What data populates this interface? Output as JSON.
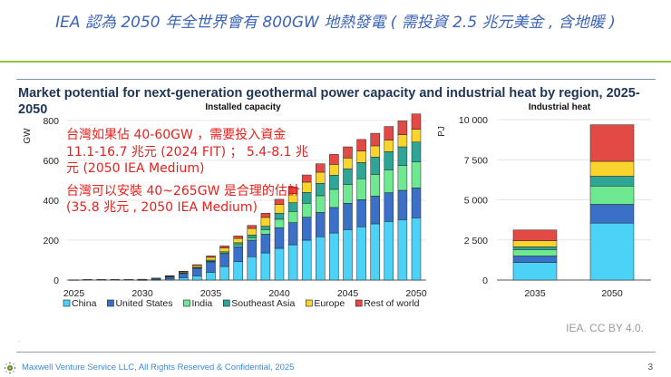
{
  "slide_title": "IEA 認為 2050 年全世界會有 800GW 地熱發電 ( 需投資 2.5 兆元美金 , 含地暖 )",
  "chart_title": "Market potential for next-generation geothermal power capacity and industrial heat by region, 2025-2050",
  "annotation": {
    "line1": "台灣如果佔 40-60GW ，需要投入資金 11.1-16.7 兆元 (2024 FIT) ； 5.4-8.1 兆元 (2050 IEA Medium)",
    "line2": "台灣可以安裝 40~265GW 是合理的估計 (35.8 兆元 , 2050 IEA Medium)"
  },
  "source": "IEA. CC BY 4.0.",
  "footer": {
    "text": "Maxwell Venture Service LLC, All Rights Reserved & Confidential, 2025",
    "page": "3"
  },
  "colors": {
    "China": "#4dd2f7",
    "United States": "#3b70c8",
    "India": "#6ee891",
    "Southeast Asia": "#2fa597",
    "Europe": "#f8d42c",
    "Rest of world": "#e24a46"
  },
  "chart_data": [
    {
      "type": "bar",
      "stacked": true,
      "title": "Installed capacity",
      "ylabel": "GW",
      "ylim": [
        0,
        800
      ],
      "yticks": [
        "0",
        "200",
        "400",
        "600",
        "800"
      ],
      "xticks": [
        "2025",
        "2030",
        "2035",
        "2040",
        "2045",
        "2050"
      ],
      "grid": true,
      "legend": "bottom",
      "categories": [
        2025,
        2026,
        2027,
        2028,
        2029,
        2030,
        2031,
        2032,
        2033,
        2034,
        2035,
        2036,
        2037,
        2038,
        2039,
        2040,
        2041,
        2042,
        2043,
        2044,
        2045,
        2046,
        2047,
        2048,
        2049,
        2050
      ],
      "series": [
        {
          "name": "China",
          "values": [
            0,
            0,
            0,
            0,
            0,
            1,
            2,
            5,
            12,
            21,
            39,
            68,
            92,
            117,
            136,
            159,
            177,
            200,
            217,
            236,
            253,
            267,
            282,
            294,
            303,
            312
          ]
        },
        {
          "name": "United States",
          "values": [
            1,
            3,
            3,
            3,
            3,
            2,
            6,
            12,
            22,
            38,
            52,
            61,
            75,
            83,
            94,
            103,
            111,
            115,
            122,
            128,
            132,
            136,
            139,
            144,
            147,
            150
          ]
        },
        {
          "name": "India",
          "values": [
            0,
            0,
            0,
            0,
            0,
            0,
            0,
            0,
            1,
            2,
            3,
            5,
            9,
            12,
            23,
            43,
            56,
            70,
            84,
            91,
            95,
            105,
            109,
            115,
            124,
            130
          ]
        },
        {
          "name": "Southeast Asia",
          "values": [
            0,
            0,
            0,
            0,
            0,
            0,
            0,
            1,
            2,
            3,
            6,
            8,
            11,
            14,
            17,
            30,
            44,
            54,
            62,
            71,
            78,
            81,
            87,
            91,
            94,
            100
          ]
        },
        {
          "name": "Europe",
          "values": [
            0,
            0,
            0,
            0,
            0,
            1,
            2,
            3,
            5,
            9,
            14,
            19,
            22,
            33,
            44,
            44,
            45,
            52,
            56,
            54,
            54,
            58,
            56,
            58,
            61,
            64
          ]
        },
        {
          "name": "Rest of world",
          "values": [
            0,
            0,
            0,
            0,
            0,
            0,
            0,
            1,
            2,
            4,
            7,
            10,
            12,
            15,
            21,
            26,
            34,
            36,
            42,
            50,
            56,
            58,
            63,
            68,
            69,
            77
          ]
        }
      ]
    },
    {
      "type": "bar",
      "stacked": true,
      "title": "Industrial heat",
      "ylabel": "PJ",
      "ylim": [
        0,
        10000
      ],
      "yticks": [
        "0",
        "2 500",
        "5 000",
        "7 500",
        "10 000"
      ],
      "grid": true,
      "categories": [
        "2035",
        "2050"
      ],
      "series": [
        {
          "name": "China",
          "values": [
            1100,
            3550
          ]
        },
        {
          "name": "United States",
          "values": [
            400,
            1170
          ]
        },
        {
          "name": "India",
          "values": [
            400,
            1140
          ]
        },
        {
          "name": "Southeast Asia",
          "values": [
            170,
            610
          ]
        },
        {
          "name": "Europe",
          "values": [
            380,
            930
          ]
        },
        {
          "name": "Rest of world",
          "values": [
            670,
            2280
          ]
        }
      ]
    }
  ]
}
